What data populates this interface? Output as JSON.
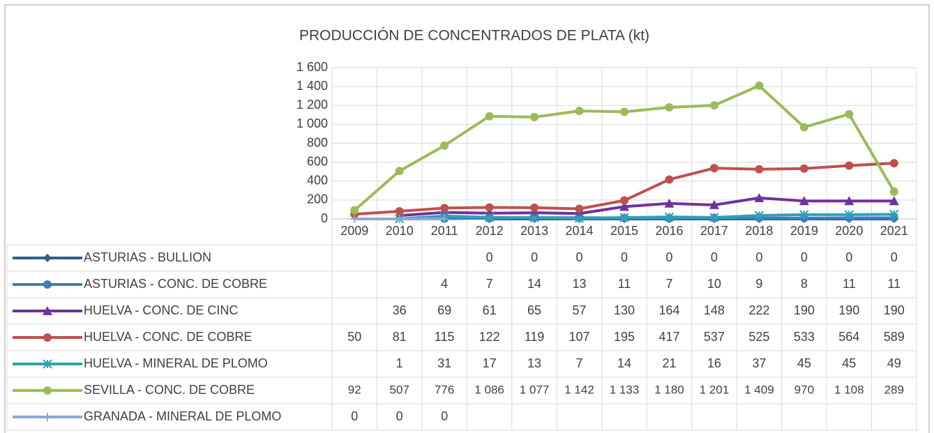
{
  "chart_data": {
    "type": "line",
    "title": "PRODUCCIÓN DE CONCENTRADOS DE PLATA (kt)",
    "categories": [
      "2009",
      "2010",
      "2011",
      "2012",
      "2013",
      "2014",
      "2015",
      "2016",
      "2017",
      "2018",
      "2019",
      "2020",
      "2021"
    ],
    "ylim": [
      0,
      1600
    ],
    "yticks": [
      0,
      200,
      400,
      600,
      800,
      {
        "value": 1000,
        "label": "1 000"
      },
      {
        "value": 1200,
        "label": "1 200"
      },
      {
        "value": 1400,
        "label": "1 400"
      },
      {
        "value": 1600,
        "label": "1 600"
      }
    ],
    "grid": true,
    "data_table": true,
    "series": [
      {
        "name": "ASTURIAS - BULLION",
        "color": "#2e5f8e",
        "marker": "diamond",
        "values": [
          null,
          null,
          null,
          0,
          0,
          0,
          0,
          0,
          0,
          0,
          0,
          0,
          0
        ]
      },
      {
        "name": "ASTURIAS - CONC. DE COBRE",
        "color": "#3d7cbf",
        "marker": "circle",
        "values": [
          null,
          null,
          4,
          7,
          14,
          13,
          11,
          7,
          10,
          9,
          8,
          11,
          11
        ]
      },
      {
        "name": "HUELVA - CONC. DE CINC",
        "color": "#7030a0",
        "marker": "triangle",
        "values": [
          null,
          36,
          69,
          61,
          65,
          57,
          130,
          164,
          148,
          222,
          190,
          190,
          190
        ]
      },
      {
        "name": "HUELVA - CONC. DE COBRE",
        "color": "#c0504d",
        "marker": "circle",
        "values": [
          50,
          81,
          115,
          122,
          119,
          107,
          195,
          417,
          537,
          525,
          533,
          564,
          589
        ]
      },
      {
        "name": "HUELVA - MINERAL DE PLOMO",
        "color": "#31a0b4",
        "marker": "star",
        "values": [
          null,
          1,
          31,
          17,
          13,
          7,
          14,
          21,
          16,
          37,
          45,
          45,
          49
        ]
      },
      {
        "name": "SEVILLA - CONC. DE COBRE",
        "color": "#9bbb59",
        "marker": "circle",
        "values": [
          92,
          507,
          776,
          1086,
          1077,
          1142,
          1133,
          1180,
          1201,
          1409,
          970,
          1108,
          289
        ],
        "value_labels": [
          "92",
          "507",
          "776",
          "1 086",
          "1 077",
          "1 142",
          "1 133",
          "1 180",
          "1 201",
          "1 409",
          "970",
          "1 108",
          "289"
        ]
      },
      {
        "name": "GRANADA - MINERAL DE PLOMO",
        "color": "#8ea9d0",
        "marker": "plus",
        "values": [
          0,
          0,
          0,
          null,
          null,
          null,
          null,
          null,
          null,
          null,
          null,
          null,
          null
        ]
      }
    ]
  }
}
